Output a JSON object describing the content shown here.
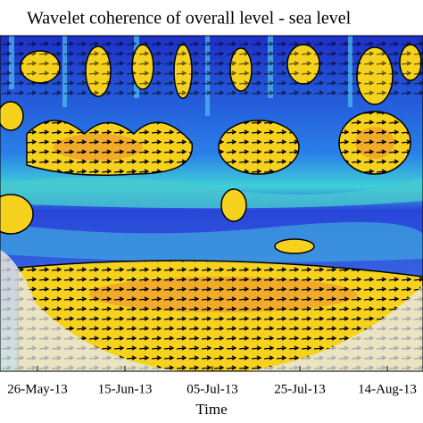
{
  "chart_data": {
    "type": "wavelet_coherence",
    "title": "Wavelet coherence of overall level - sea level",
    "x_label": "Time",
    "categories": [
      "26-May-13",
      "15-Jun-13",
      "05-Jul-13",
      "25-Jul-13",
      "14-Aug-13"
    ]
  }
}
